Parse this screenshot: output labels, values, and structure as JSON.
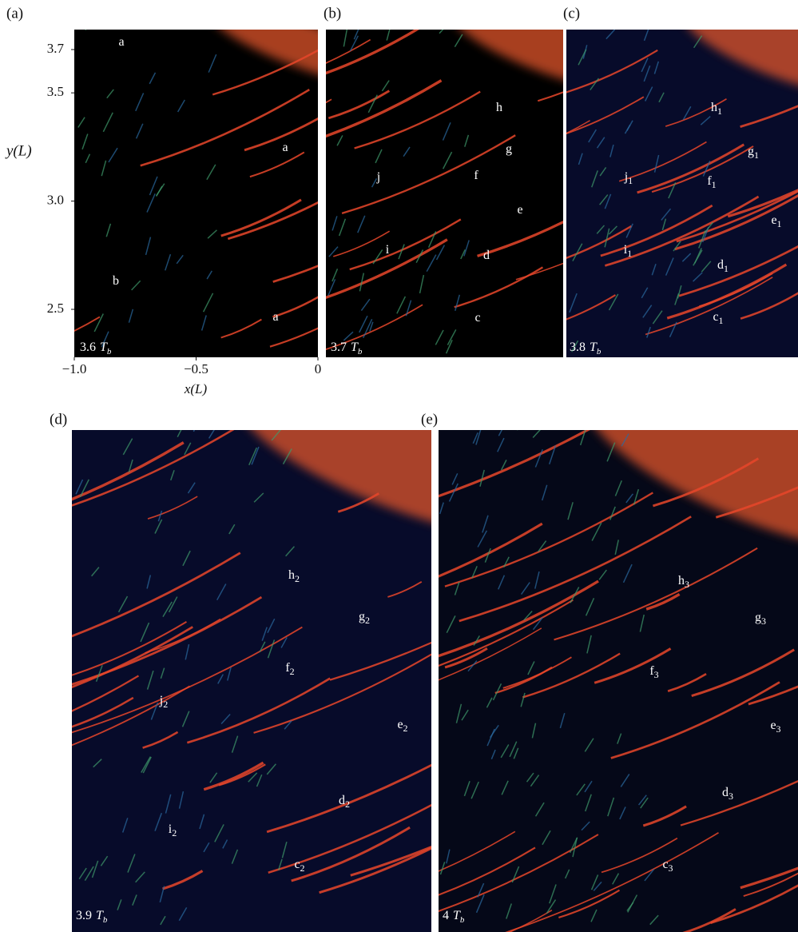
{
  "panels": [
    {
      "label": "(a)",
      "time": {
        "value": "3.6",
        "unit": "T",
        "sub": "b"
      },
      "annotations": [
        {
          "text": "a"
        },
        {
          "text": "a"
        },
        {
          "text": "b"
        },
        {
          "text": "a"
        }
      ],
      "y_axis_label": "y(L)",
      "x_axis_label": "x(L)",
      "yticks": [
        3.7,
        3.5,
        {
          "value": 3,
          "label": "3.0"
        },
        2.5
      ],
      "xticks": [
        {
          "value": -1,
          "label": "−1.0"
        },
        {
          "value": -0.5,
          "label": "−0.5"
        },
        0
      ]
    },
    {
      "label": "(b)",
      "time": {
        "value": "3.7",
        "unit": "T",
        "sub": "b"
      },
      "annotations": [
        {
          "text": "h"
        },
        {
          "text": "g"
        },
        {
          "text": "f"
        },
        {
          "text": "j"
        },
        {
          "text": "e"
        },
        {
          "text": "d"
        },
        {
          "text": "i"
        },
        {
          "text": "c"
        }
      ]
    },
    {
      "label": "(c)",
      "time": {
        "value": "3.8",
        "unit": "T",
        "sub": "b"
      },
      "annotations": [
        {
          "text": "h",
          "sub": "1"
        },
        {
          "text": "g",
          "sub": "1"
        },
        {
          "text": "f",
          "sub": "1"
        },
        {
          "text": "j",
          "sub": "1"
        },
        {
          "text": "e",
          "sub": "1"
        },
        {
          "text": "i",
          "sub": "1"
        },
        {
          "text": "d",
          "sub": "1"
        },
        {
          "text": "c",
          "sub": "1"
        }
      ]
    },
    {
      "label": "(d)",
      "time": {
        "value": "3.9",
        "unit": "T",
        "sub": "b"
      },
      "annotations": [
        {
          "text": "h",
          "sub": "2"
        },
        {
          "text": "g",
          "sub": "2"
        },
        {
          "text": "f",
          "sub": "2"
        },
        {
          "text": "j",
          "sub": "2"
        },
        {
          "text": "e",
          "sub": "2"
        },
        {
          "text": "d",
          "sub": "2"
        },
        {
          "text": "i",
          "sub": "2"
        },
        {
          "text": "c",
          "sub": "2"
        }
      ]
    },
    {
      "label": "(e)",
      "time": {
        "value": "4",
        "unit": "T",
        "sub": "b"
      },
      "annotations": [
        {
          "text": "h",
          "sub": "3"
        },
        {
          "text": "g",
          "sub": "3"
        },
        {
          "text": "f",
          "sub": "3"
        },
        {
          "text": "e",
          "sub": "3"
        },
        {
          "text": "d",
          "sub": "3"
        },
        {
          "text": "c",
          "sub": "3"
        }
      ]
    }
  ]
}
